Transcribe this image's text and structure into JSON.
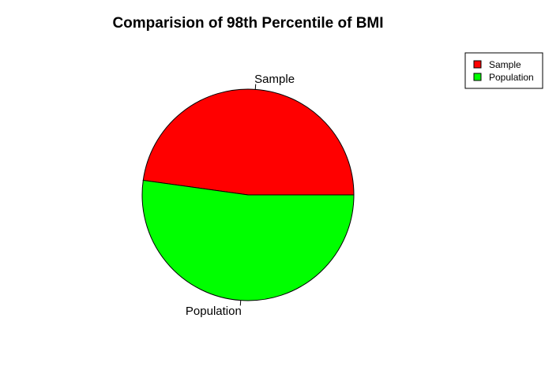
{
  "chart_data": {
    "type": "pie",
    "title": "Comparision of 98th Percentile of BMI",
    "labels": [
      "Sample",
      "Population"
    ],
    "values": [
      47.8,
      52.2
    ],
    "colors": [
      "#ff0000",
      "#00ff00"
    ],
    "legend": {
      "placement": "top-right",
      "entries": [
        "Sample",
        "Population"
      ]
    }
  }
}
